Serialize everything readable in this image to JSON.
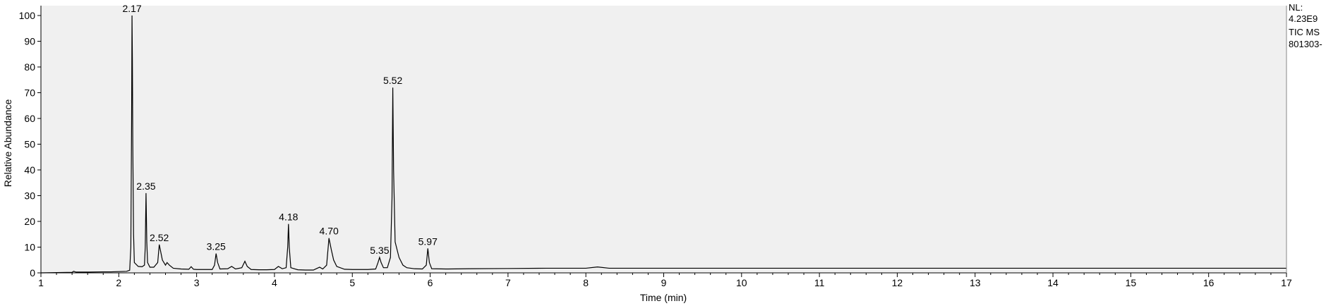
{
  "chart_data": {
    "type": "line",
    "xlabel": "Time (min)",
    "ylabel": "Relative Abundance",
    "xlim": [
      1,
      17
    ],
    "ylim": [
      0,
      100
    ],
    "x_ticks": [
      1,
      2,
      3,
      4,
      5,
      6,
      7,
      8,
      9,
      10,
      11,
      12,
      13,
      14,
      15,
      16,
      17
    ],
    "y_ticks": [
      0,
      10,
      20,
      30,
      40,
      50,
      60,
      70,
      80,
      90,
      100
    ],
    "grid": false,
    "background_color": "#f0f0f0",
    "line_color": "#000000",
    "series": [
      {
        "points": [
          [
            1.0,
            0.0
          ],
          [
            1.4,
            0.2
          ],
          [
            1.42,
            0.6
          ],
          [
            1.45,
            0.3
          ],
          [
            1.6,
            0.3
          ],
          [
            1.8,
            0.4
          ],
          [
            1.9,
            0.4
          ],
          [
            2.0,
            0.5
          ],
          [
            2.1,
            0.6
          ],
          [
            2.14,
            1.0
          ],
          [
            2.155,
            10
          ],
          [
            2.165,
            60
          ],
          [
            2.17,
            100
          ],
          [
            2.175,
            82
          ],
          [
            2.18,
            50
          ],
          [
            2.19,
            15
          ],
          [
            2.2,
            4
          ],
          [
            2.25,
            2.5
          ],
          [
            2.3,
            2.4
          ],
          [
            2.33,
            3
          ],
          [
            2.34,
            10
          ],
          [
            2.35,
            31
          ],
          [
            2.36,
            12
          ],
          [
            2.37,
            4
          ],
          [
            2.4,
            2.2
          ],
          [
            2.45,
            2.2
          ],
          [
            2.5,
            4
          ],
          [
            2.52,
            11
          ],
          [
            2.54,
            8
          ],
          [
            2.56,
            5
          ],
          [
            2.6,
            3
          ],
          [
            2.62,
            4
          ],
          [
            2.65,
            3
          ],
          [
            2.7,
            1.8
          ],
          [
            2.8,
            1.5
          ],
          [
            2.9,
            1.4
          ],
          [
            2.93,
            2.4
          ],
          [
            2.96,
            1.4
          ],
          [
            3.0,
            1.3
          ],
          [
            3.2,
            1.3
          ],
          [
            3.23,
            3
          ],
          [
            3.25,
            7.5
          ],
          [
            3.27,
            4
          ],
          [
            3.3,
            1.5
          ],
          [
            3.4,
            1.6
          ],
          [
            3.45,
            2.5
          ],
          [
            3.5,
            1.5
          ],
          [
            3.58,
            2
          ],
          [
            3.62,
            4.5
          ],
          [
            3.65,
            2.5
          ],
          [
            3.7,
            1.3
          ],
          [
            3.8,
            1.2
          ],
          [
            3.9,
            1.2
          ],
          [
            4.0,
            1.3
          ],
          [
            4.05,
            2.5
          ],
          [
            4.1,
            1.6
          ],
          [
            4.15,
            2
          ],
          [
            4.17,
            10
          ],
          [
            4.18,
            19
          ],
          [
            4.19,
            10
          ],
          [
            4.21,
            2
          ],
          [
            4.3,
            1.2
          ],
          [
            4.4,
            1.1
          ],
          [
            4.5,
            1.1
          ],
          [
            4.58,
            2.2
          ],
          [
            4.62,
            1.5
          ],
          [
            4.67,
            3
          ],
          [
            4.7,
            13.5
          ],
          [
            4.73,
            9
          ],
          [
            4.76,
            5
          ],
          [
            4.8,
            2.5
          ],
          [
            4.9,
            1.4
          ],
          [
            5.0,
            1.3
          ],
          [
            5.1,
            1.3
          ],
          [
            5.2,
            1.3
          ],
          [
            5.3,
            1.5
          ],
          [
            5.33,
            4
          ],
          [
            5.35,
            6
          ],
          [
            5.37,
            4
          ],
          [
            5.4,
            2
          ],
          [
            5.45,
            2
          ],
          [
            5.49,
            6
          ],
          [
            5.51,
            29
          ],
          [
            5.52,
            72
          ],
          [
            5.53,
            40
          ],
          [
            5.55,
            12
          ],
          [
            5.6,
            6
          ],
          [
            5.65,
            3
          ],
          [
            5.7,
            2
          ],
          [
            5.8,
            1.6
          ],
          [
            5.9,
            1.5
          ],
          [
            5.95,
            3
          ],
          [
            5.97,
            9.5
          ],
          [
            5.99,
            4
          ],
          [
            6.02,
            1.6
          ],
          [
            6.2,
            1.5
          ],
          [
            6.5,
            1.6
          ],
          [
            7.0,
            1.7
          ],
          [
            7.5,
            1.8
          ],
          [
            8.0,
            1.8
          ],
          [
            8.15,
            2.3
          ],
          [
            8.3,
            1.8
          ],
          [
            9.0,
            1.8
          ],
          [
            10.0,
            1.8
          ],
          [
            11.0,
            1.8
          ],
          [
            12.0,
            1.8
          ],
          [
            13.0,
            1.8
          ],
          [
            14.0,
            1.8
          ],
          [
            15.0,
            1.8
          ],
          [
            16.0,
            1.8
          ],
          [
            17.0,
            1.8
          ]
        ]
      }
    ],
    "peak_labels": [
      {
        "text": "2.17",
        "x": 2.17,
        "y": 100
      },
      {
        "text": "2.35",
        "x": 2.35,
        "y": 31
      },
      {
        "text": "2.52",
        "x": 2.52,
        "y": 11
      },
      {
        "text": "3.25",
        "x": 3.25,
        "y": 7.5
      },
      {
        "text": "4.18",
        "x": 4.18,
        "y": 19
      },
      {
        "text": "4.70",
        "x": 4.7,
        "y": 13.5
      },
      {
        "text": "5.35",
        "x": 5.35,
        "y": 6
      },
      {
        "text": "5.52",
        "x": 5.52,
        "y": 72
      },
      {
        "text": "5.97",
        "x": 5.97,
        "y": 9.5
      }
    ]
  },
  "info_panel": {
    "lines": [
      "NL:",
      "4.23E9",
      "TIC  MS",
      "801303-"
    ]
  }
}
